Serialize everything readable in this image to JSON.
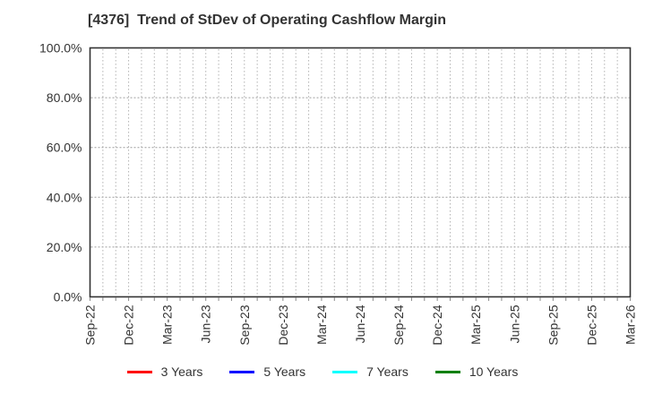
{
  "chart_data": {
    "type": "line",
    "title": "[4376]  Trend of StDev of Operating Cashflow Margin",
    "x_tick_labels": [
      "Sep-22",
      "Dec-22",
      "Mar-23",
      "Jun-23",
      "Sep-23",
      "Dec-23",
      "Mar-24",
      "Jun-24",
      "Sep-24",
      "Dec-24",
      "Mar-25",
      "Jun-25",
      "Sep-25",
      "Dec-25",
      "Mar-26"
    ],
    "x_minor_divisions": 42,
    "x_label_every_n_minor": 3,
    "y_tick_labels": [
      "100.0%",
      "80.0%",
      "60.0%",
      "40.0%",
      "20.0%",
      "0.0%"
    ],
    "y_tick_values": [
      100,
      80,
      60,
      40,
      20,
      0
    ],
    "ylim": [
      0,
      100
    ],
    "grid": true,
    "legend_position": "bottom-center",
    "series": [
      {
        "name": "3 Years",
        "color": "#ff0000",
        "values": []
      },
      {
        "name": "5 Years",
        "color": "#0000ff",
        "values": []
      },
      {
        "name": "7 Years",
        "color": "#00ffff",
        "values": []
      },
      {
        "name": "10 Years",
        "color": "#008000",
        "values": []
      }
    ]
  },
  "style_colors": {
    "text": "#333333",
    "axis_border": "#333333",
    "grid_vertical": "#b3b3b3",
    "grid_horizontal": "#9e9e9e",
    "tick_mark": "#888888",
    "background": "#ffffff"
  }
}
